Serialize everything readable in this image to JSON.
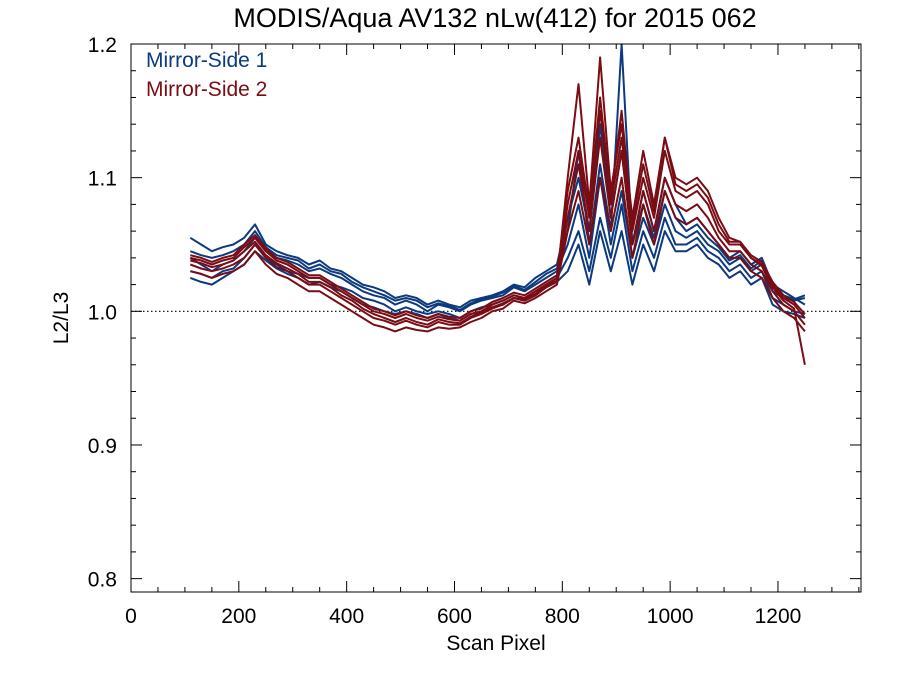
{
  "chart_data": {
    "type": "line",
    "title": "MODIS/Aqua AV132 nLw(412) for 2015 062",
    "xlabel": "Scan Pixel",
    "ylabel": "L2/L3",
    "xlim": [
      0,
      1354
    ],
    "ylim": [
      0.79,
      1.2
    ],
    "x_ticks": [
      0,
      200,
      400,
      600,
      800,
      1000,
      1200
    ],
    "x_tick_labels": [
      "0",
      "200",
      "400",
      "600",
      "800",
      "1000",
      "1200"
    ],
    "y_ticks": [
      0.8,
      0.9,
      1.0,
      1.1,
      1.2
    ],
    "y_tick_labels": [
      "0.8",
      "0.9",
      "1.0",
      "1.1",
      "1.2"
    ],
    "x_minor_step": 50,
    "y_minor_step": 0.02,
    "reference_line": {
      "y": 1.0,
      "style": "dotted",
      "color": "#000000"
    },
    "legend_position": "top-left",
    "x": [
      110,
      130,
      150,
      170,
      190,
      210,
      230,
      250,
      270,
      290,
      310,
      330,
      350,
      370,
      390,
      410,
      430,
      450,
      470,
      490,
      510,
      530,
      550,
      570,
      590,
      610,
      630,
      650,
      670,
      690,
      710,
      730,
      750,
      770,
      790,
      810,
      830,
      850,
      870,
      890,
      910,
      930,
      950,
      970,
      990,
      1010,
      1030,
      1050,
      1070,
      1090,
      1110,
      1130,
      1150,
      1170,
      1190,
      1210,
      1230,
      1250
    ],
    "series": [
      {
        "name": "Mirror-Side 1",
        "color": "#0c3a7e",
        "lines": [
          [
            1.055,
            1.05,
            1.045,
            1.048,
            1.05,
            1.055,
            1.065,
            1.05,
            1.045,
            1.042,
            1.04,
            1.035,
            1.038,
            1.032,
            1.03,
            1.025,
            1.02,
            1.018,
            1.015,
            1.01,
            1.012,
            1.01,
            1.005,
            1.008,
            1.005,
            1.003,
            1.008,
            1.01,
            1.012,
            1.015,
            1.02,
            1.018,
            1.025,
            1.03,
            1.035,
            1.07,
            1.1,
            1.06,
            1.14,
            1.07,
            1.12,
            1.05,
            1.09,
            1.06,
            1.1,
            1.08,
            1.065,
            1.07,
            1.06,
            1.05,
            1.04,
            1.045,
            1.035,
            1.04,
            1.02,
            1.015,
            1.01,
            1.005
          ],
          [
            1.04,
            1.035,
            1.03,
            1.035,
            1.038,
            1.045,
            1.055,
            1.045,
            1.04,
            1.038,
            1.035,
            1.03,
            1.032,
            1.028,
            1.025,
            1.02,
            1.015,
            1.012,
            1.01,
            1.005,
            1.008,
            1.005,
            1.0,
            1.005,
            1.003,
            1.0,
            1.005,
            1.008,
            1.01,
            1.012,
            1.018,
            1.015,
            1.02,
            1.025,
            1.03,
            1.05,
            1.08,
            1.04,
            1.1,
            1.05,
            1.09,
            1.04,
            1.07,
            1.05,
            1.08,
            1.06,
            1.055,
            1.06,
            1.05,
            1.045,
            1.035,
            1.04,
            1.03,
            1.035,
            1.015,
            1.01,
            1.008,
            1.01
          ],
          [
            1.03,
            1.028,
            1.025,
            1.03,
            1.032,
            1.04,
            1.05,
            1.04,
            1.035,
            1.03,
            1.028,
            1.025,
            1.025,
            1.02,
            1.018,
            1.015,
            1.01,
            1.008,
            1.005,
            1.0,
            1.003,
            1.0,
            0.998,
            1.0,
            0.998,
            0.995,
            1.0,
            1.003,
            1.005,
            1.008,
            1.012,
            1.01,
            1.015,
            1.02,
            1.025,
            1.04,
            1.06,
            1.03,
            1.07,
            1.04,
            1.08,
            1.03,
            1.06,
            1.04,
            1.07,
            1.05,
            1.05,
            1.055,
            1.045,
            1.04,
            1.03,
            1.035,
            1.025,
            1.03,
            1.01,
            1.005,
            1.0,
            0.998
          ],
          [
            1.025,
            1.022,
            1.02,
            1.025,
            1.03,
            1.035,
            1.045,
            1.038,
            1.032,
            1.028,
            1.025,
            1.02,
            1.022,
            1.018,
            1.015,
            1.01,
            1.005,
            1.003,
            1.0,
            0.998,
            1.0,
            0.998,
            0.995,
            0.998,
            0.995,
            0.993,
            0.998,
            1.0,
            1.003,
            1.005,
            1.01,
            1.008,
            1.012,
            1.018,
            1.022,
            1.03,
            1.05,
            1.02,
            1.06,
            1.03,
            1.06,
            1.02,
            1.05,
            1.03,
            1.06,
            1.045,
            1.045,
            1.05,
            1.04,
            1.035,
            1.025,
            1.03,
            1.02,
            1.025,
            1.005,
            1.0,
            0.998,
            0.995
          ],
          [
            1.045,
            1.042,
            1.04,
            1.042,
            1.045,
            1.05,
            1.06,
            1.048,
            1.042,
            1.04,
            1.038,
            1.032,
            1.035,
            1.03,
            1.028,
            1.022,
            1.018,
            1.015,
            1.012,
            1.008,
            1.01,
            1.008,
            1.003,
            1.006,
            1.004,
            1.001,
            1.006,
            1.009,
            1.011,
            1.014,
            1.019,
            1.016,
            1.022,
            1.028,
            1.032,
            1.06,
            1.12,
            1.05,
            1.11,
            1.06,
            1.2,
            1.05,
            1.08,
            1.055,
            1.09,
            1.07,
            1.06,
            1.065,
            1.055,
            1.048,
            1.038,
            1.042,
            1.032,
            1.038,
            1.018,
            1.012,
            1.009,
            1.012
          ]
        ]
      },
      {
        "name": "Mirror-Side 2",
        "color": "#7a0c14",
        "lines": [
          [
            1.04,
            1.038,
            1.035,
            1.038,
            1.04,
            1.048,
            1.055,
            1.045,
            1.038,
            1.035,
            1.03,
            1.025,
            1.025,
            1.02,
            1.015,
            1.01,
            1.005,
            1.0,
            0.998,
            0.995,
            0.998,
            0.995,
            0.993,
            0.996,
            0.994,
            0.993,
            0.998,
            1.0,
            1.005,
            1.008,
            1.012,
            1.01,
            1.015,
            1.02,
            1.025,
            1.08,
            1.12,
            1.07,
            1.15,
            1.08,
            1.13,
            1.06,
            1.1,
            1.07,
            1.12,
            1.09,
            1.085,
            1.09,
            1.08,
            1.06,
            1.05,
            1.05,
            1.04,
            1.035,
            1.02,
            1.01,
            1.005,
            0.995
          ],
          [
            1.035,
            1.032,
            1.03,
            1.032,
            1.035,
            1.04,
            1.05,
            1.04,
            1.033,
            1.03,
            1.025,
            1.02,
            1.02,
            1.015,
            1.01,
            1.005,
            1.0,
            0.995,
            0.993,
            0.99,
            0.993,
            0.99,
            0.988,
            0.992,
            0.99,
            0.99,
            0.995,
            0.998,
            1.002,
            1.005,
            1.01,
            1.008,
            1.012,
            1.018,
            1.022,
            1.07,
            1.11,
            1.06,
            1.13,
            1.07,
            1.12,
            1.05,
            1.09,
            1.06,
            1.1,
            1.08,
            1.075,
            1.08,
            1.07,
            1.055,
            1.045,
            1.045,
            1.035,
            1.03,
            1.015,
            1.005,
            1.0,
            0.99
          ],
          [
            1.03,
            1.028,
            1.025,
            1.028,
            1.03,
            1.035,
            1.045,
            1.035,
            1.028,
            1.025,
            1.02,
            1.015,
            1.015,
            1.01,
            1.005,
            1.0,
            0.995,
            0.99,
            0.988,
            0.985,
            0.988,
            0.986,
            0.985,
            0.988,
            0.987,
            0.988,
            0.992,
            0.995,
            1.0,
            1.002,
            1.008,
            1.006,
            1.01,
            1.015,
            1.02,
            1.06,
            1.09,
            1.05,
            1.1,
            1.06,
            1.1,
            1.04,
            1.08,
            1.05,
            1.09,
            1.07,
            1.065,
            1.07,
            1.06,
            1.05,
            1.04,
            1.04,
            1.03,
            1.025,
            1.01,
            1.0,
            0.995,
            0.985
          ],
          [
            1.038,
            1.036,
            1.033,
            1.035,
            1.038,
            1.045,
            1.052,
            1.042,
            1.036,
            1.032,
            1.028,
            1.022,
            1.022,
            1.018,
            1.012,
            1.008,
            1.002,
            0.998,
            0.995,
            0.992,
            0.995,
            0.992,
            0.99,
            0.994,
            0.992,
            0.991,
            0.996,
            0.999,
            1.003,
            1.006,
            1.01,
            1.009,
            1.013,
            1.019,
            1.023,
            1.1,
            1.17,
            1.08,
            1.19,
            1.09,
            1.14,
            1.07,
            1.12,
            1.08,
            1.13,
            1.1,
            1.095,
            1.1,
            1.09,
            1.07,
            1.055,
            1.052,
            1.04,
            1.034,
            1.018,
            1.008,
            1.002,
            0.96
          ],
          [
            1.042,
            1.04,
            1.037,
            1.04,
            1.042,
            1.05,
            1.057,
            1.047,
            1.04,
            1.037,
            1.032,
            1.027,
            1.027,
            1.022,
            1.017,
            1.012,
            1.007,
            1.002,
            1.0,
            0.997,
            1.0,
            0.997,
            0.995,
            0.998,
            0.996,
            0.995,
            1.0,
            1.002,
            1.007,
            1.01,
            1.014,
            1.012,
            1.017,
            1.022,
            1.027,
            1.09,
            1.13,
            1.075,
            1.16,
            1.085,
            1.15,
            1.065,
            1.11,
            1.075,
            1.13,
            1.095,
            1.09,
            1.095,
            1.085,
            1.065,
            1.052,
            1.052,
            1.042,
            1.037,
            1.022,
            1.012,
            1.007,
            0.998
          ]
        ]
      }
    ]
  }
}
